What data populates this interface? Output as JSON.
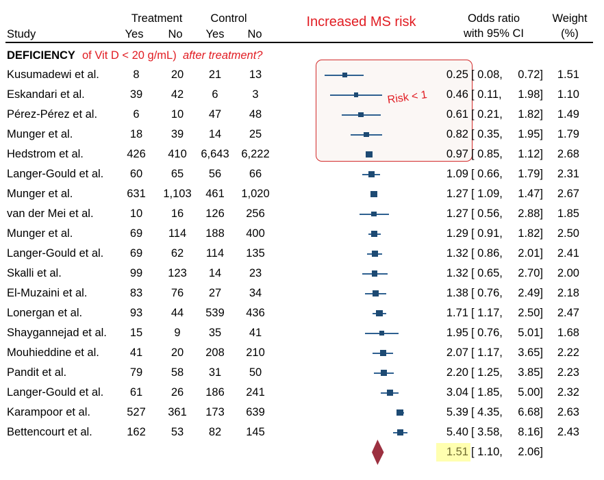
{
  "header": {
    "study": "Study",
    "treatment": "Treatment",
    "control": "Control",
    "yes": "Yes",
    "no": "No",
    "odds_ratio_line1": "Odds ratio",
    "odds_ratio_line2": "with 95% CI",
    "weight_line1": "Weight",
    "weight_line2": "(%)"
  },
  "section_header": {
    "bold_black": "DEFICIENCY",
    "red_text": "of Vit D < 20 g/mL)",
    "red_italic": "after treatment?"
  },
  "annotations": {
    "increased_ms_risk": "Increased MS risk",
    "risk_lt_1": "Risk < 1"
  },
  "colors": {
    "marker_navy": "#1d4a73",
    "ci_line_navy": "#2e6090",
    "diamond_maroon": "#9c3040",
    "annotation_red": "#e11c22",
    "highlight_yellow": "#ffffb0",
    "overall_or_text": "#6e6a2e",
    "text_black": "#000000"
  },
  "chart_data": {
    "type": "table",
    "subtype": "forest-plot",
    "or_axis": {
      "scale": "log",
      "null_line": 1.0
    },
    "legend_columns": [
      "Study",
      "Treatment Yes/No",
      "Control Yes/No",
      "Odds ratio with 95% CI",
      "Weight (%)"
    ],
    "studies": [
      {
        "study": "Kusumadewi et al.",
        "t_yes": "8",
        "t_no": "20",
        "c_yes": "21",
        "c_no": "13",
        "or": 0.25,
        "lo": 0.08,
        "hi": 0.72,
        "weight": 1.51
      },
      {
        "study": "Eskandari et al.",
        "t_yes": "39",
        "t_no": "42",
        "c_yes": "6",
        "c_no": "3",
        "or": 0.46,
        "lo": 0.11,
        "hi": 1.98,
        "weight": 1.1
      },
      {
        "study": "Pérez-Pérez et al.",
        "t_yes": "6",
        "t_no": "10",
        "c_yes": "47",
        "c_no": "48",
        "or": 0.61,
        "lo": 0.21,
        "hi": 1.82,
        "weight": 1.49
      },
      {
        "study": "Munger et al.",
        "t_yes": "18",
        "t_no": "39",
        "c_yes": "14",
        "c_no": "25",
        "or": 0.82,
        "lo": 0.35,
        "hi": 1.95,
        "weight": 1.79
      },
      {
        "study": "Hedstrom et al.",
        "t_yes": "426",
        "t_no": "410",
        "c_yes": "6,643",
        "c_no": "6,222",
        "or": 0.97,
        "lo": 0.85,
        "hi": 1.12,
        "weight": 2.68
      },
      {
        "study": "Langer-Gould et al.",
        "t_yes": "60",
        "t_no": "65",
        "c_yes": "56",
        "c_no": "66",
        "or": 1.09,
        "lo": 0.66,
        "hi": 1.79,
        "weight": 2.31
      },
      {
        "study": "Munger et al.",
        "t_yes": "631",
        "t_no": "1,103",
        "c_yes": "461",
        "c_no": "1,020",
        "or": 1.27,
        "lo": 1.09,
        "hi": 1.47,
        "weight": 2.67
      },
      {
        "study": "van der Mei et al.",
        "t_yes": "10",
        "t_no": "16",
        "c_yes": "126",
        "c_no": "256",
        "or": 1.27,
        "lo": 0.56,
        "hi": 2.88,
        "weight": 1.85
      },
      {
        "study": "Munger et al.",
        "t_yes": "69",
        "t_no": "114",
        "c_yes": "188",
        "c_no": "400",
        "or": 1.29,
        "lo": 0.91,
        "hi": 1.82,
        "weight": 2.5
      },
      {
        "study": "Langer-Gould et al.",
        "t_yes": "69",
        "t_no": "62",
        "c_yes": "114",
        "c_no": "135",
        "or": 1.32,
        "lo": 0.86,
        "hi": 2.01,
        "weight": 2.41
      },
      {
        "study": "Skalli et al.",
        "t_yes": "99",
        "t_no": "123",
        "c_yes": "14",
        "c_no": "23",
        "or": 1.32,
        "lo": 0.65,
        "hi": 2.7,
        "weight": 2.0
      },
      {
        "study": "El-Muzaini et al.",
        "t_yes": "83",
        "t_no": "76",
        "c_yes": "27",
        "c_no": "34",
        "or": 1.38,
        "lo": 0.76,
        "hi": 2.49,
        "weight": 2.18
      },
      {
        "study": "Lonergan et al.",
        "t_yes": "93",
        "t_no": "44",
        "c_yes": "539",
        "c_no": "436",
        "or": 1.71,
        "lo": 1.17,
        "hi": 2.5,
        "weight": 2.47
      },
      {
        "study": "Shaygannejad et al.",
        "t_yes": "15",
        "t_no": "9",
        "c_yes": "35",
        "c_no": "41",
        "or": 1.95,
        "lo": 0.76,
        "hi": 5.01,
        "weight": 1.68
      },
      {
        "study": "Mouhieddine et al.",
        "t_yes": "41",
        "t_no": "20",
        "c_yes": "208",
        "c_no": "210",
        "or": 2.07,
        "lo": 1.17,
        "hi": 3.65,
        "weight": 2.22
      },
      {
        "study": "Pandit et al.",
        "t_yes": "79",
        "t_no": "58",
        "c_yes": "31",
        "c_no": "50",
        "or": 2.2,
        "lo": 1.25,
        "hi": 3.85,
        "weight": 2.23
      },
      {
        "study": "Langer-Gould et al.",
        "t_yes": "61",
        "t_no": "26",
        "c_yes": "186",
        "c_no": "241",
        "or": 3.04,
        "lo": 1.85,
        "hi": 5.0,
        "weight": 2.32
      },
      {
        "study": "Karampoor et al.",
        "t_yes": "527",
        "t_no": "361",
        "c_yes": "173",
        "c_no": "639",
        "or": 5.39,
        "lo": 4.35,
        "hi": 6.68,
        "weight": 2.63
      },
      {
        "study": "Bettencourt et al.",
        "t_yes": "162",
        "t_no": "53",
        "c_yes": "82",
        "c_no": "145",
        "or": 5.4,
        "lo": 3.58,
        "hi": 8.16,
        "weight": 2.43
      }
    ],
    "overall": {
      "or": 1.51,
      "lo": 1.1,
      "hi": 2.06,
      "highlighted": true
    }
  }
}
